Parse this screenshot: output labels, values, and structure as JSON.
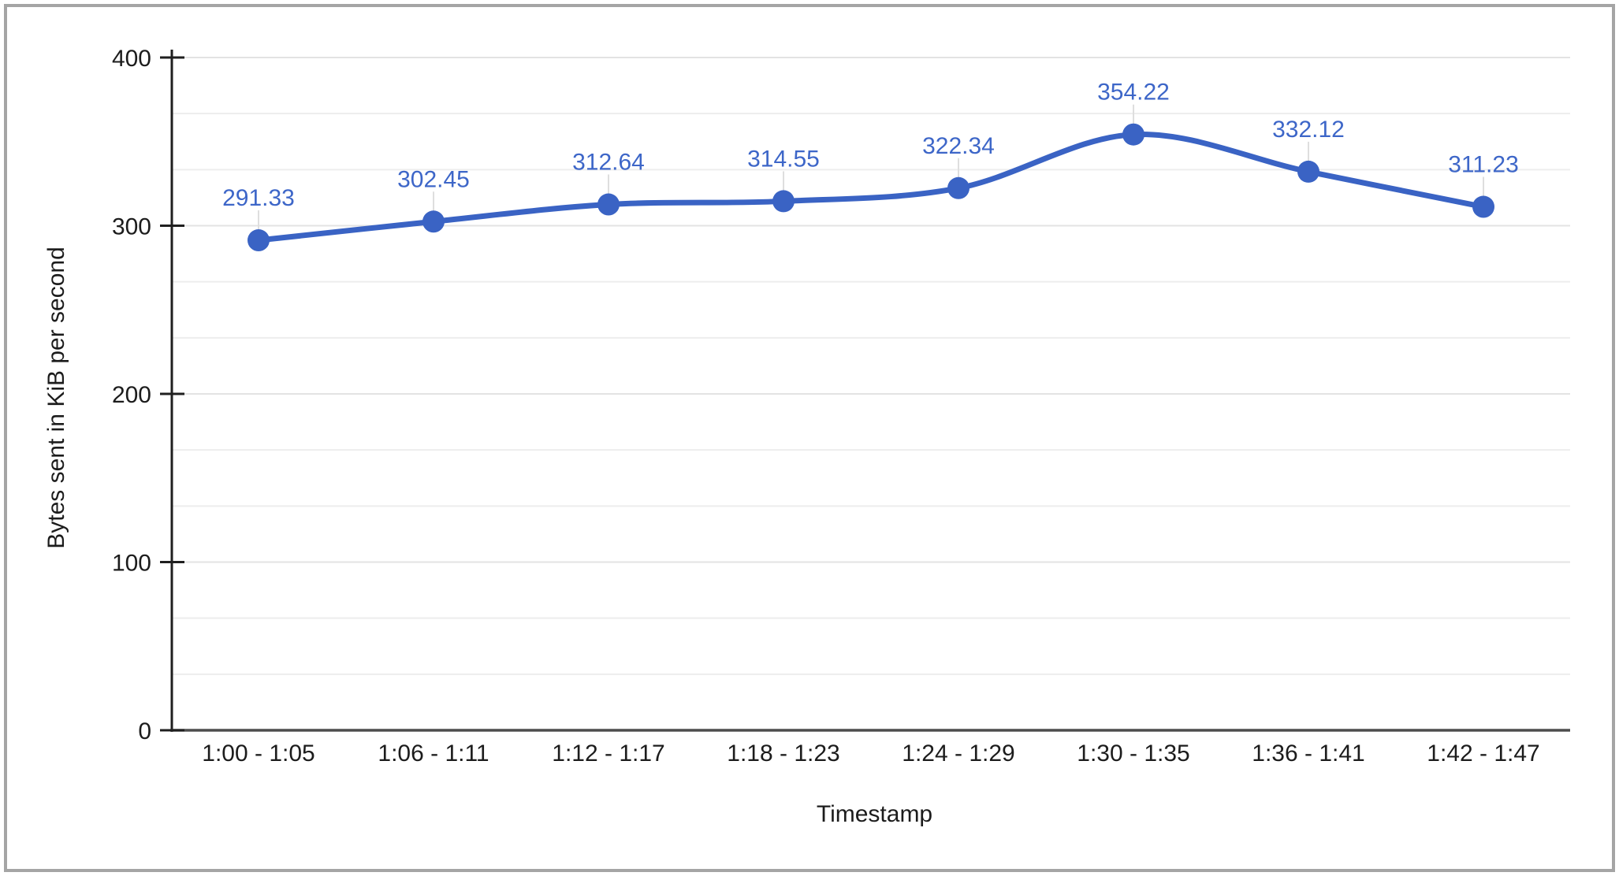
{
  "chart_data": {
    "type": "line",
    "smooth": true,
    "title": "",
    "xlabel": "Timestamp",
    "ylabel": "Bytes sent in KiB per second",
    "categories": [
      "1:00 - 1:05",
      "1:06 - 1:11",
      "1:12 - 1:17",
      "1:18 - 1:23",
      "1:24 - 1:29",
      "1:30 - 1:35",
      "1:36 - 1:41",
      "1:42 - 1:47"
    ],
    "values": [
      291.33,
      302.45,
      312.64,
      314.55,
      322.34,
      354.22,
      332.12,
      311.23
    ],
    "point_labels": [
      "291.33",
      "302.45",
      "312.64",
      "314.55",
      "322.34",
      "354.22",
      "332.12",
      "311.23"
    ],
    "ylim": [
      0,
      400
    ],
    "yticks": [
      0,
      100,
      200,
      300,
      400
    ],
    "ytick_labels": [
      "0",
      "100",
      "200",
      "300",
      "400"
    ],
    "minor_gridlines_per_interval": 2,
    "grid": true,
    "legend_position": "none",
    "colors": {
      "series": "#3a63c4",
      "point_label": "#3d66c8",
      "gridline": "#e3e3e3",
      "minor_gridline": "#ededed",
      "axis_line": "#1f1f1f",
      "baseline": "#4d4d4d",
      "tick_text": "#1c1c1c",
      "leader_line": "#dedede",
      "frame_border": "#a5a5a5",
      "background": "#ffffff"
    }
  }
}
